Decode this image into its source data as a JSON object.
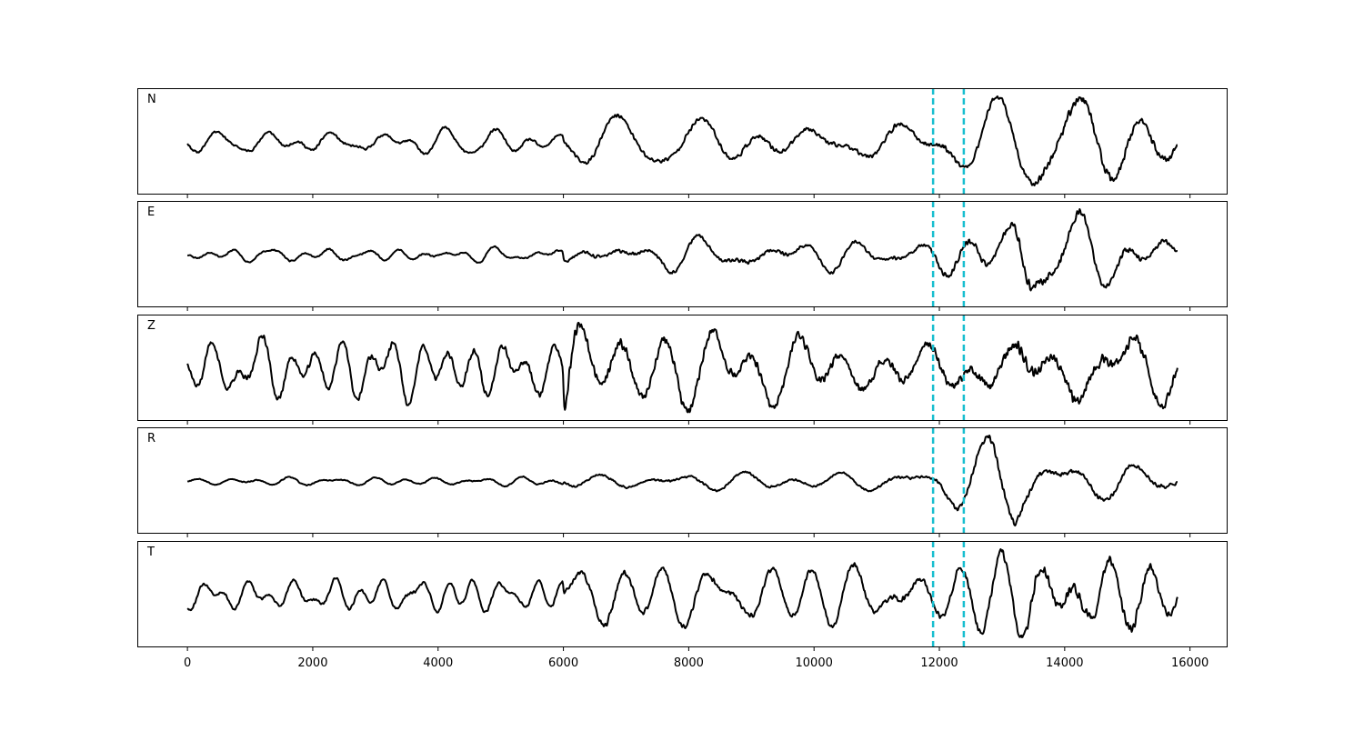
{
  "chart_data": {
    "type": "line",
    "panels": [
      {
        "label": "N",
        "seed": 11,
        "noise_amp": 0.16,
        "event_profile": [
          [
            0,
            0.55
          ],
          [
            6000,
            0.6
          ],
          [
            6100,
            1.0
          ],
          [
            12000,
            1.2
          ],
          [
            13000,
            1.6
          ],
          [
            14200,
            2.2
          ],
          [
            15800,
            1.6
          ]
        ]
      },
      {
        "label": "E",
        "seed": 23,
        "noise_amp": 0.16,
        "event_profile": [
          [
            0,
            0.3
          ],
          [
            6000,
            0.35
          ],
          [
            6100,
            0.7
          ],
          [
            11800,
            0.8
          ],
          [
            12100,
            1.3
          ],
          [
            13100,
            1.6
          ],
          [
            13250,
            3.2
          ],
          [
            13600,
            1.8
          ],
          [
            15800,
            1.0
          ]
        ]
      },
      {
        "label": "Z",
        "seed": 37,
        "noise_amp": 0.16,
        "event_profile": [
          [
            0,
            0.9
          ],
          [
            6000,
            1.0
          ],
          [
            6030,
            2.8
          ],
          [
            6300,
            1.6
          ],
          [
            12000,
            1.4
          ],
          [
            13200,
            2.0
          ],
          [
            15800,
            1.8
          ]
        ]
      },
      {
        "label": "R",
        "seed": 53,
        "noise_amp": 0.16,
        "event_profile": [
          [
            0,
            0.3
          ],
          [
            6000,
            0.4
          ],
          [
            6100,
            0.7
          ],
          [
            11900,
            0.8
          ],
          [
            12100,
            1.5
          ],
          [
            13200,
            2.8
          ],
          [
            13400,
            2.0
          ],
          [
            15800,
            1.0
          ]
        ]
      },
      {
        "label": "T",
        "seed": 71,
        "noise_amp": 0.16,
        "event_profile": [
          [
            0,
            0.6
          ],
          [
            6000,
            0.7
          ],
          [
            6100,
            1.2
          ],
          [
            12000,
            1.3
          ],
          [
            13500,
            2.6
          ],
          [
            14200,
            2.6
          ],
          [
            15800,
            1.8
          ]
        ]
      }
    ],
    "x_start": 0,
    "x_end": 15800,
    "xlim": [
      -800,
      16600
    ],
    "xticks": [
      0,
      2000,
      4000,
      6000,
      8000,
      10000,
      12000,
      14000,
      16000
    ],
    "markers": [
      11900,
      12390
    ],
    "marker_color": "#17becf",
    "line_color": "#000000",
    "xlabel": "",
    "ylabel": "",
    "title": ""
  }
}
